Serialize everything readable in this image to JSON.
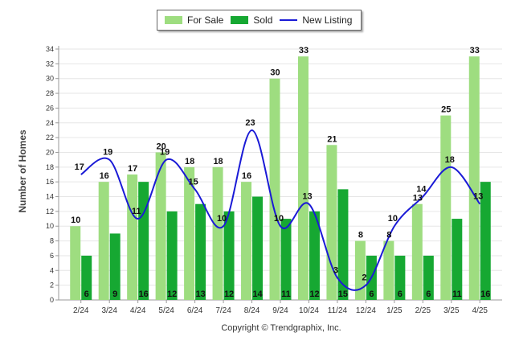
{
  "chart_data": {
    "type": "bar",
    "categories": [
      "2/24",
      "3/24",
      "4/24",
      "5/24",
      "6/24",
      "7/24",
      "8/24",
      "9/24",
      "10/24",
      "11/24",
      "12/24",
      "1/25",
      "2/25",
      "3/25",
      "4/25"
    ],
    "series": [
      {
        "name": "For Sale",
        "type": "bar",
        "color": "#9edd80",
        "values": [
          10,
          16,
          17,
          20,
          18,
          18,
          16,
          30,
          33,
          21,
          8,
          8,
          13,
          25,
          33
        ]
      },
      {
        "name": "Sold",
        "type": "bar",
        "color": "#16a832",
        "values": [
          6,
          9,
          16,
          12,
          13,
          12,
          14,
          11,
          12,
          15,
          6,
          6,
          6,
          11,
          16
        ]
      },
      {
        "name": "New Listing",
        "type": "line",
        "color": "#1a1ad6",
        "values": [
          17,
          19,
          11,
          19,
          15,
          10,
          23,
          10,
          13,
          3,
          2,
          10,
          14,
          18,
          13
        ]
      }
    ],
    "ylabel": "Number of Homes",
    "xlabel": "",
    "ylim": [
      0,
      34
    ],
    "yticks": [
      0,
      2,
      4,
      6,
      8,
      10,
      12,
      14,
      16,
      18,
      20,
      22,
      24,
      26,
      28,
      30,
      32,
      34
    ],
    "grid": true,
    "legend_position": "top-center"
  },
  "footer": {
    "copyright": "Copyright © Trendgraphix, Inc."
  }
}
